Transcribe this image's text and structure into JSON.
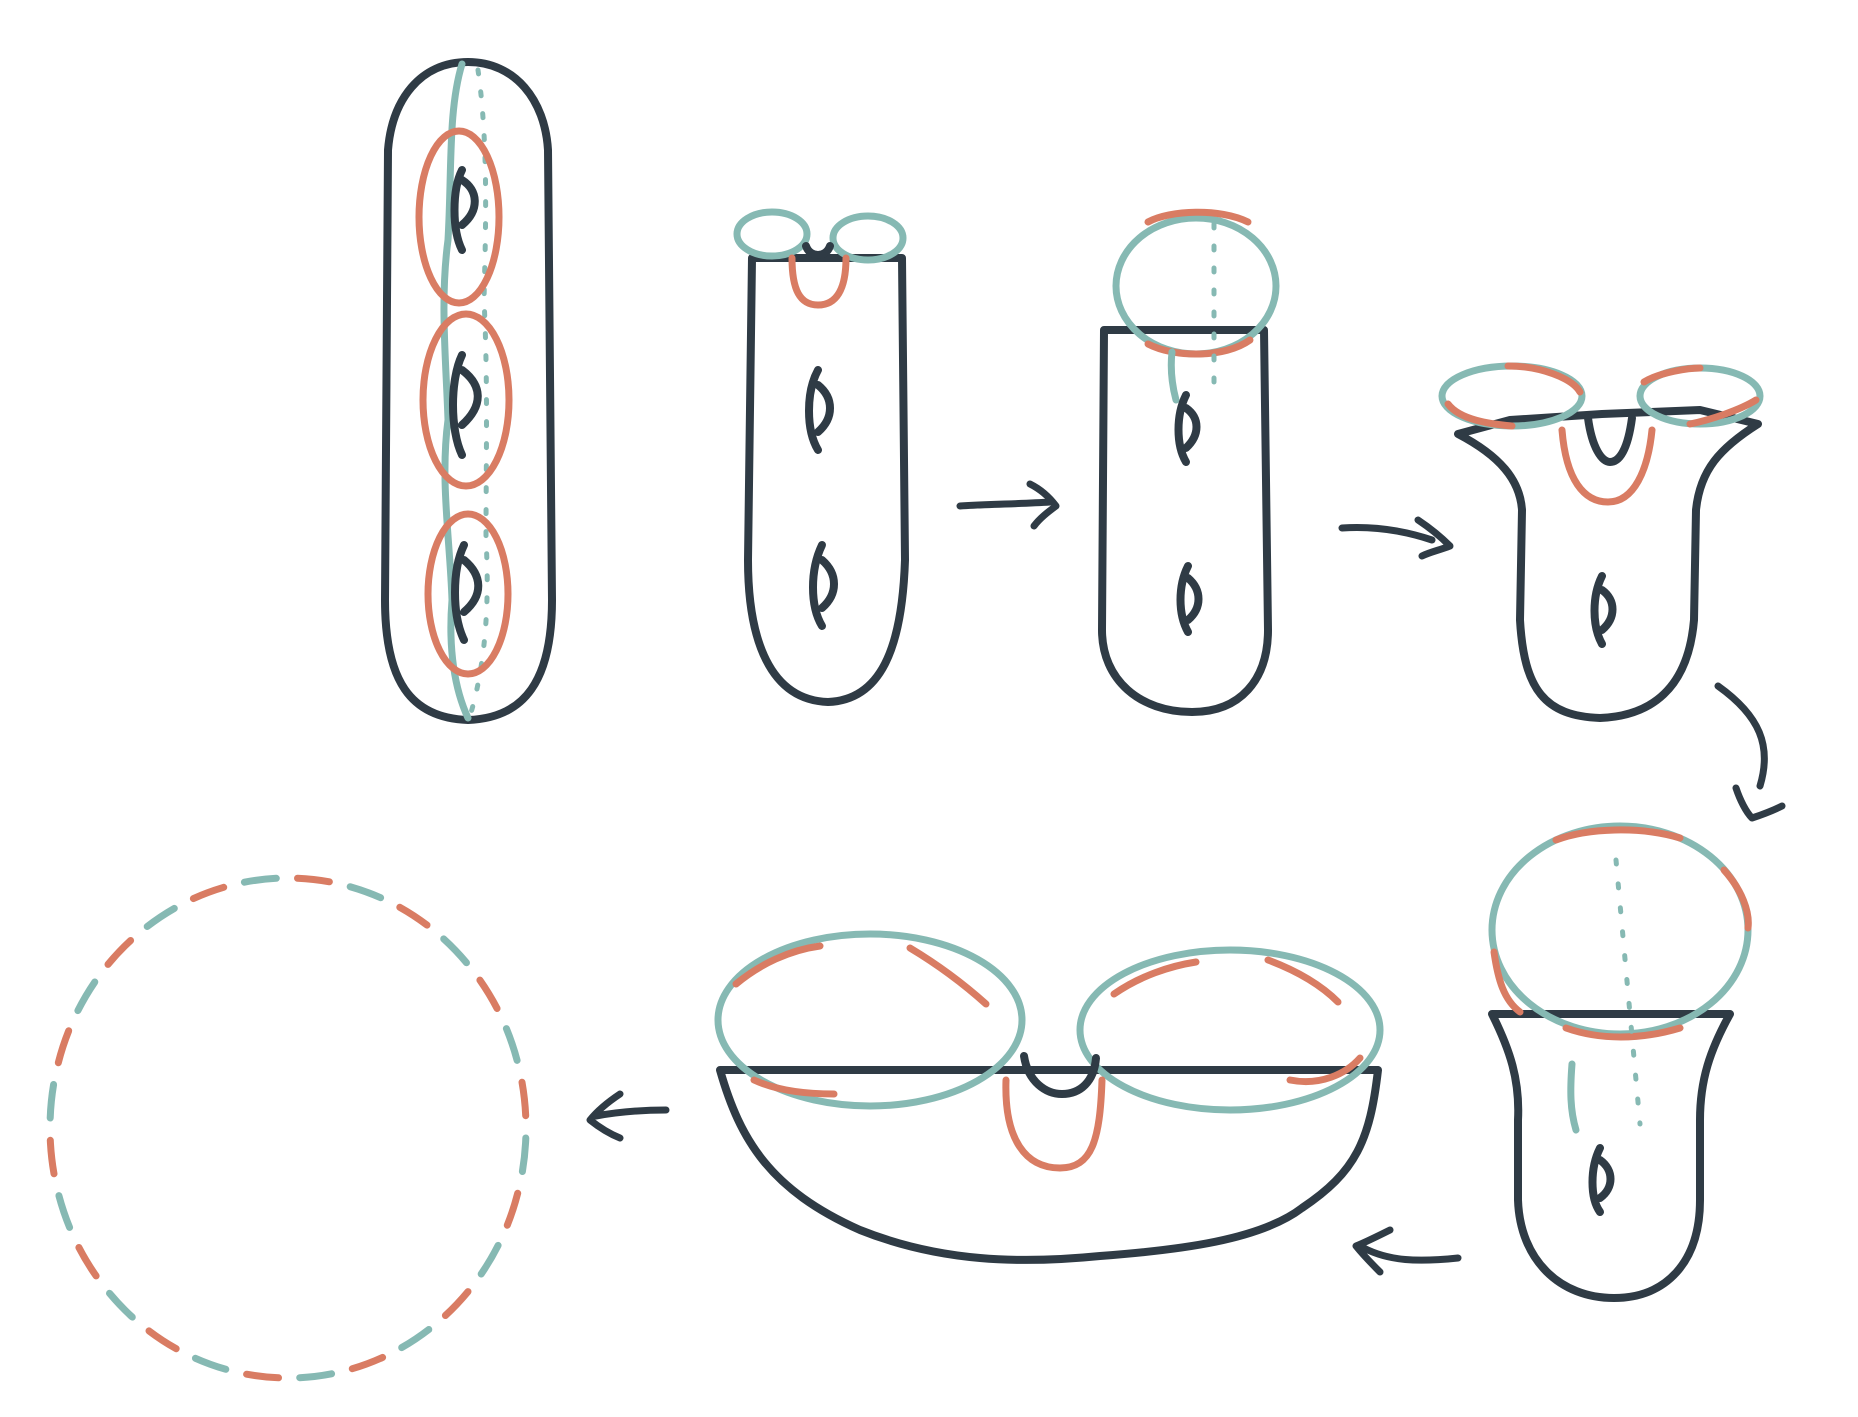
{
  "colors": {
    "surface_fill": "#e3e3e3",
    "outline": "#2f3b45",
    "teal": "#86b9b3",
    "salmon": "#d97c63",
    "background": "#ffffff"
  },
  "stages": [
    {
      "step": 1,
      "description_icon": "three-holed-surface-icon"
    },
    {
      "step": 2,
      "description_icon": "surface-with-two-boundary-circles-icon"
    },
    {
      "step": 3,
      "description_icon": "surface-with-one-boundary-circle-icon"
    },
    {
      "step": 4,
      "description_icon": "pants-shaped-surface-icon"
    },
    {
      "step": 5,
      "description_icon": "one-holed-surface-with-disk-icon"
    },
    {
      "step": 6,
      "description_icon": "flattened-pair-of-disks-icon"
    },
    {
      "step": 7,
      "description_icon": "polygon-disk-icon"
    }
  ],
  "arrows": [
    {
      "from": 2,
      "to": 3,
      "icon": "arrow-right-icon"
    },
    {
      "from": 3,
      "to": 4,
      "icon": "arrow-right-icon"
    },
    {
      "from": 4,
      "to": 5,
      "icon": "arrow-down-curved-icon"
    },
    {
      "from": 5,
      "to": 6,
      "icon": "arrow-left-curved-icon"
    },
    {
      "from": 6,
      "to": 7,
      "icon": "arrow-left-icon"
    }
  ]
}
